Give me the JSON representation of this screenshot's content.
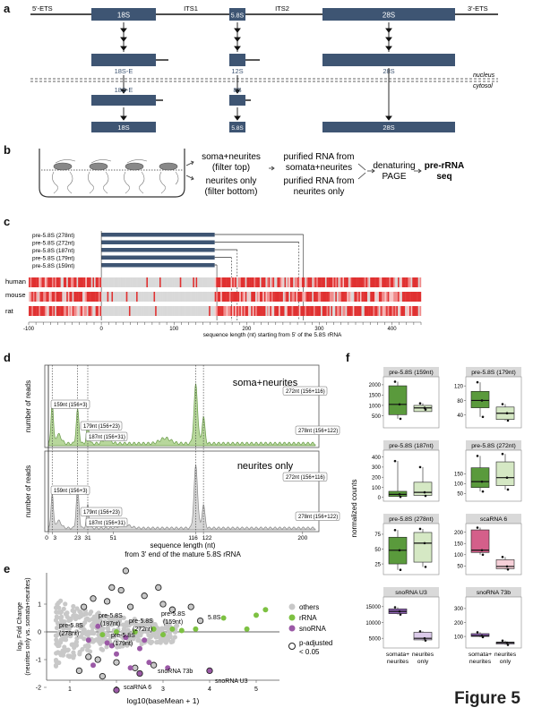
{
  "figure_label": "Figure 5",
  "panel_a": {
    "letter": "a",
    "ets5": "5'-ETS",
    "its1": "ITS1",
    "its2": "ITS2",
    "ets3": "3'-ETS",
    "r18S": "18S",
    "r58S": "5.8S",
    "r28S": "28S",
    "s18SE": "18S-E",
    "s12S": "12S",
    "s28S": "28S",
    "nucleus": "nucleus",
    "cytosol": "cytosol",
    "c18SE": "18S-E",
    "c8S": "8S",
    "m18S": "18S",
    "m58S": "5.8S",
    "m28S": "28S"
  },
  "panel_b": {
    "letter": "b",
    "filter_top": [
      "soma+neurites",
      "(filter top)"
    ],
    "filter_bottom": [
      "neurites only",
      "(filter bottom)"
    ],
    "rna_top": [
      "purified RNA from",
      "somata+neurites"
    ],
    "rna_bottom": [
      "purified RNA from",
      "neurites only"
    ],
    "page": [
      "denaturing",
      "PAGE"
    ],
    "seq": [
      "pre-rRNA",
      "seq"
    ]
  },
  "panel_c": {
    "letter": "c",
    "transcripts": [
      "pre-5.8S (278nt)",
      "pre-5.8S (272nt)",
      "pre-5.8S (187nt)",
      "pre-5.8S (179nt)",
      "pre-5.8S (159nt)"
    ],
    "species": [
      "human",
      "mouse",
      "rat"
    ],
    "ticks": [
      "-100",
      "0",
      "100",
      "200",
      "300",
      "400"
    ],
    "xlabel": "sequence length (nt) starting from 5' of the 5.8S rRNA"
  },
  "panel_d": {
    "letter": "d",
    "top_title": "soma+neurites",
    "bottom_title": "neurites only",
    "ylabel": "number of reads",
    "ticks": [
      "0",
      "3",
      "23",
      "31",
      "51",
      "116",
      "122",
      "200"
    ],
    "xlabel": [
      "sequence length (nt)",
      "from 3' end of the mature 5.8S rRNA"
    ],
    "peaks": [
      "159nt (156+3)",
      "179nt (156+23)",
      "187nt (156+31)",
      "272nt (156+116)",
      "278nt (156+122)"
    ]
  },
  "panel_e": {
    "letter": "e",
    "ylabel": [
      "log₂ Fold Change",
      "(neurites only vs. somata+neurites)"
    ],
    "xlabel": "log10(baseMean + 1)",
    "xticks": [
      "1",
      "2",
      "3",
      "4",
      "5"
    ],
    "yticks": [
      "1",
      "0",
      "-1",
      "-2"
    ],
    "legend": [
      "others",
      "rRNA",
      "snoRNA",
      "p-adjusted",
      "< 0.05"
    ],
    "annotations": [
      "pre-5.8S",
      "(278nt)",
      "pre-5.8S",
      "(187nt)",
      "pre-5.8S",
      "(272nt)",
      "pre-5.8S",
      "(159nt)",
      "pre-5.8S",
      "(179nt)",
      "5.8S",
      "snoRNA 73b",
      "snoRNA U3",
      "scaRNA 6"
    ],
    "colors": {
      "others": "#c8c8c8",
      "rRNA": "#7dc142",
      "snoRNA": "#9b59a6"
    }
  },
  "panel_f": {
    "letter": "f",
    "ylabel": "normalized counts",
    "titles": [
      "pre-5.8S (159nt)",
      "pre-5.8S (179nt)",
      "pre-5.8S (187nt)",
      "pre-5.8S (272nt)",
      "pre-5.8S (278nt)",
      "scaRNA 6",
      "snoRNA U3",
      "snoRNA 73b"
    ],
    "yticks": [
      [
        "2000",
        "1500",
        "1000",
        "500"
      ],
      [
        "120",
        "80",
        "40"
      ],
      [
        "400",
        "300",
        "200",
        "100",
        "0"
      ],
      [
        "150",
        "100",
        "50"
      ],
      [
        "75",
        "50",
        "25"
      ],
      [
        "200",
        "150",
        "100",
        "50"
      ],
      [
        "15000",
        "10000",
        "5000"
      ],
      [
        "300",
        "200",
        "100"
      ]
    ],
    "xcats": [
      [
        "somata+",
        "neurites"
      ],
      [
        "neurites",
        "only"
      ]
    ],
    "colors": {
      "green_dark": "#5a9a3c",
      "green_light": "#d5e8c4",
      "pink_dark": "#d45f8a",
      "pink_light": "#f6cfd8",
      "purple_dark": "#8f62b4",
      "purple_light": "#dccbea"
    }
  }
}
